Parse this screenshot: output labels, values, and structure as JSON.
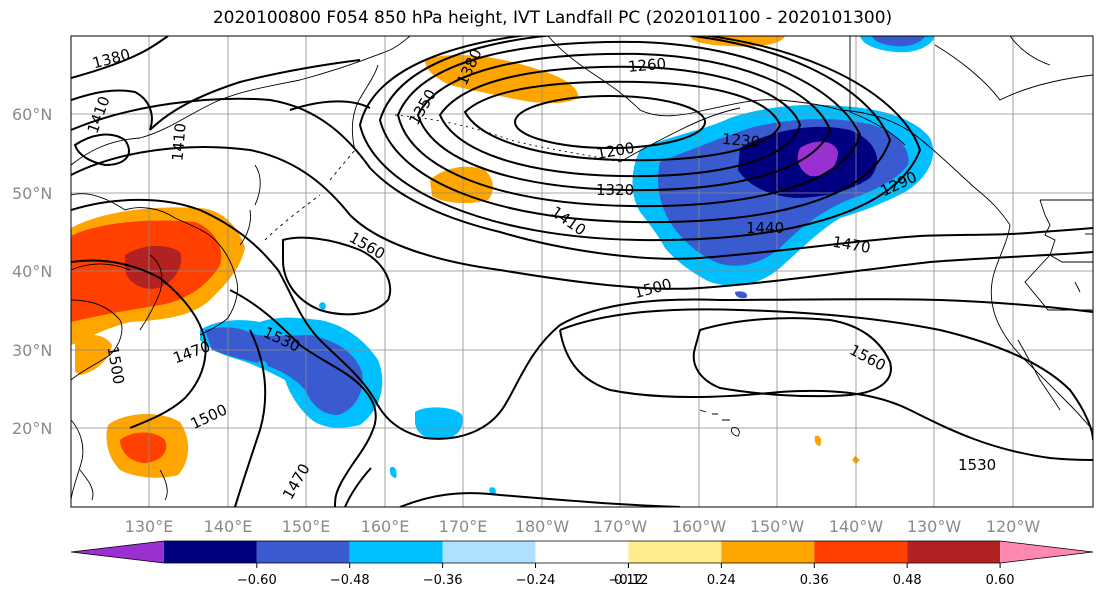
{
  "title": "2020100800 F054 850 hPa height, IVT Landfall PC (2020101100 - 2020101300)",
  "lat_labels": [
    "60°N",
    "50°N",
    "40°N",
    "30°N",
    "20°N"
  ],
  "lon_labels": [
    "130°E",
    "140°E",
    "150°E",
    "160°E",
    "170°E",
    "180°W",
    "170°W",
    "160°W",
    "150°W",
    "140°W",
    "130°W",
    "120°W"
  ],
  "contour_labels": [
    "1380",
    "1410",
    "1410",
    "1380",
    "1350",
    "1260",
    "1200",
    "1230",
    "1320",
    "1290",
    "1410",
    "1440",
    "1470",
    "1560",
    "1500",
    "1500",
    "1470",
    "1530",
    "1500",
    "1470",
    "1560",
    "1530"
  ],
  "colorbar": {
    "ticks": [
      "−0.60",
      "−0.48",
      "−0.36",
      "−0.24",
      "−0.12",
      "0.12",
      "0.24",
      "0.36",
      "0.48",
      "0.60"
    ],
    "colors": [
      "#9b30d0",
      "#000080",
      "#3a5bd0",
      "#00bfff",
      "#b0e0ff",
      "#ffffff",
      "#ffec8b",
      "#ffa500",
      "#ff4000",
      "#b22222",
      "#ff88b0"
    ]
  },
  "shading_colors": {
    "neg_light": "#b0e0ff",
    "neg_mid": "#00bfff",
    "neg_strong": "#3a5bd0",
    "neg_darker": "#000080",
    "neg_max": "#9b30d0",
    "pos_light": "#ffec8b",
    "pos_mid": "#ffa500",
    "pos_strong": "#ff4000",
    "pos_max": "#b22222"
  }
}
